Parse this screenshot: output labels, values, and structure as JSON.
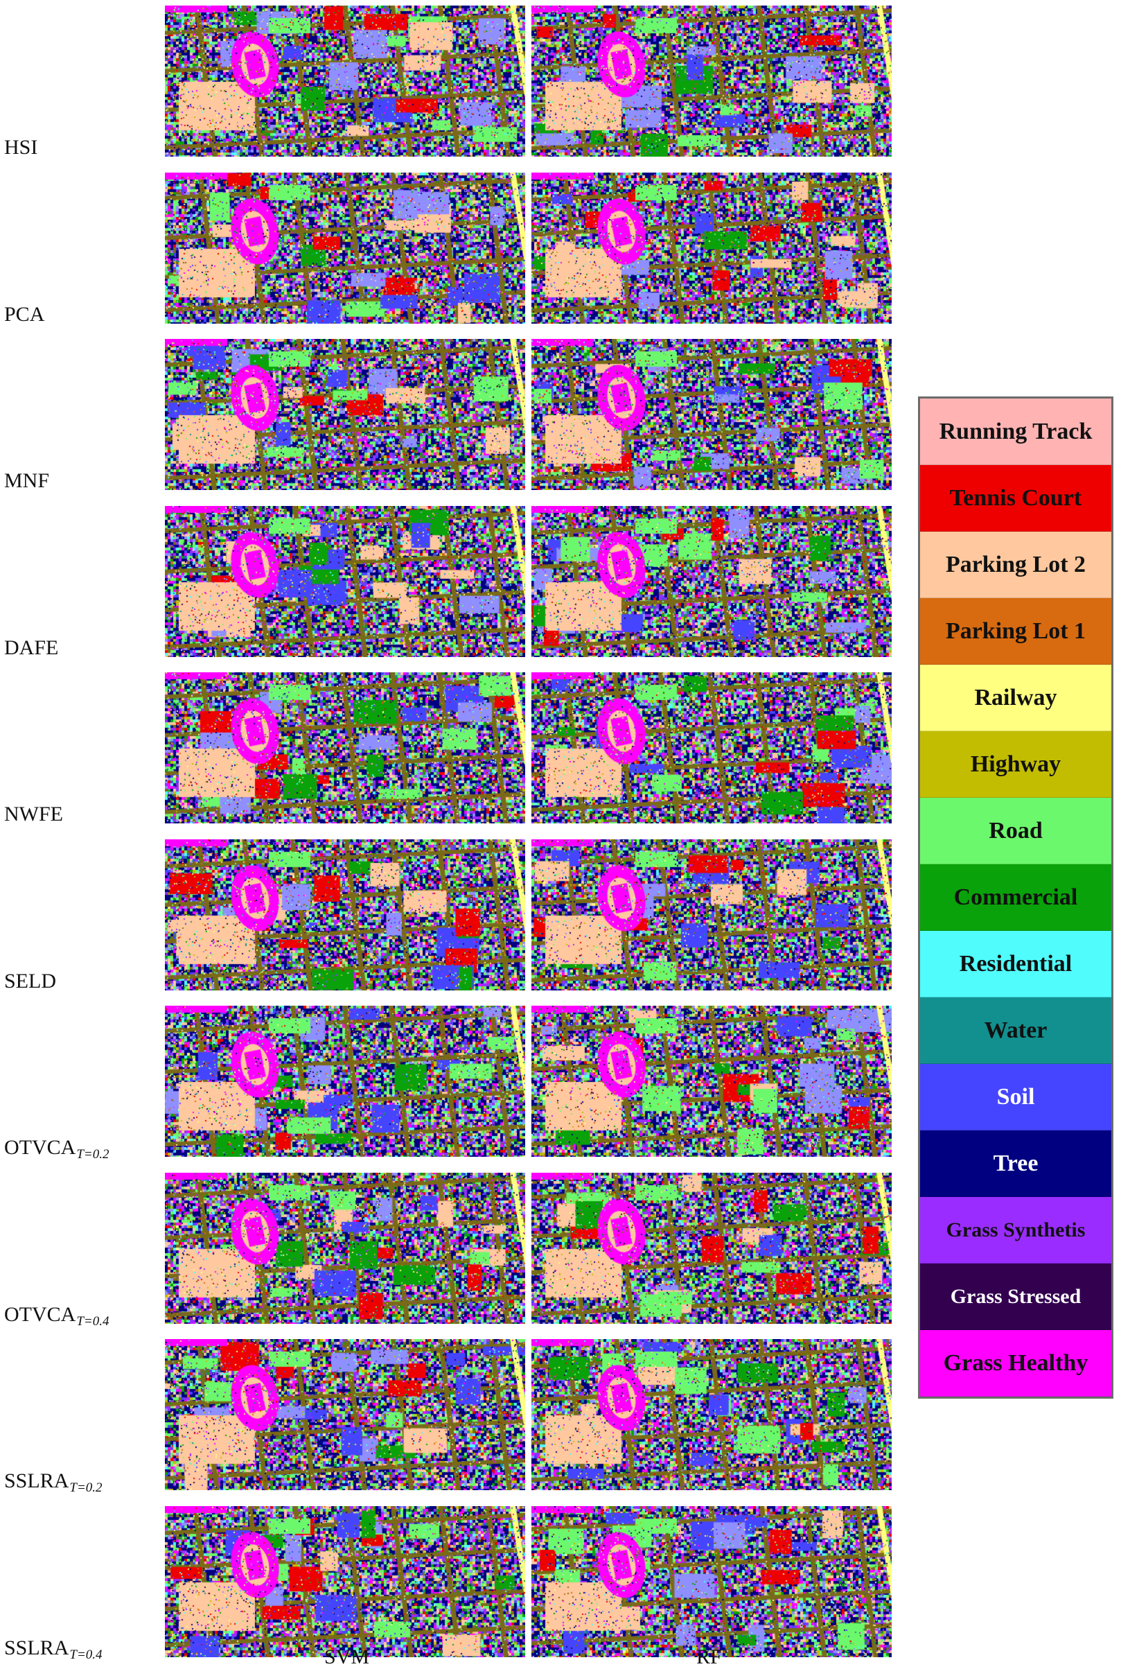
{
  "figure": {
    "rows": [
      {
        "method": "HSI",
        "sub": ""
      },
      {
        "method": "PCA",
        "sub": ""
      },
      {
        "method": "MNF",
        "sub": ""
      },
      {
        "method": "DAFE",
        "sub": ""
      },
      {
        "method": "NWFE",
        "sub": ""
      },
      {
        "method": "SELD",
        "sub": ""
      },
      {
        "method": "OTVCA",
        "sub": "T=0.2"
      },
      {
        "method": "OTVCA",
        "sub": "T=0.4"
      },
      {
        "method": "SSLRA",
        "sub": "T=0.2"
      },
      {
        "method": "SSLRA",
        "sub": "T=0.4"
      }
    ],
    "columns": [
      "SVM",
      "RF"
    ]
  },
  "legend": {
    "items": [
      {
        "label": "Running Track",
        "color": "#ffb3b3",
        "text_color": "dark"
      },
      {
        "label": "Tennis Court",
        "color": "#ee0000",
        "text_color": "dark"
      },
      {
        "label": "Parking Lot 2",
        "color": "#ffc89e",
        "text_color": "dark"
      },
      {
        "label": "Parking Lot 1",
        "color": "#d86a10",
        "text_color": "dark"
      },
      {
        "label": "Railway",
        "color": "#ffff80",
        "text_color": "dark"
      },
      {
        "label": "Highway",
        "color": "#c2bd00",
        "text_color": "dark"
      },
      {
        "label": "Road",
        "color": "#6cf86c",
        "text_color": "dark"
      },
      {
        "label": "Commercial",
        "color": "#0aa20a",
        "text_color": "dark"
      },
      {
        "label": "Residential",
        "color": "#50fcfc",
        "text_color": "dark"
      },
      {
        "label": "Water",
        "color": "#12908f",
        "text_color": "dark"
      },
      {
        "label": "Soil",
        "color": "#4545ff",
        "text_color": "light"
      },
      {
        "label": "Tree",
        "color": "#000080",
        "text_color": "light"
      },
      {
        "label": "Grass Synthetis",
        "color": "#9a2cff",
        "text_color": "dark"
      },
      {
        "label": "Grass Stressed",
        "color": "#330050",
        "text_color": "light"
      },
      {
        "label": "Grass Healthy",
        "color": "#ff00ff",
        "text_color": "dark"
      }
    ]
  },
  "map_palette": [
    "#ff00ff",
    "#330050",
    "#9a2cff",
    "#000080",
    "#4545ff",
    "#6cf86c",
    "#0aa20a",
    "#50fcfc",
    "#12908f",
    "#ffc89e",
    "#d86a10",
    "#ffff80",
    "#c2bd00",
    "#ee0000",
    "#7a6a18",
    "#8f8fff"
  ]
}
